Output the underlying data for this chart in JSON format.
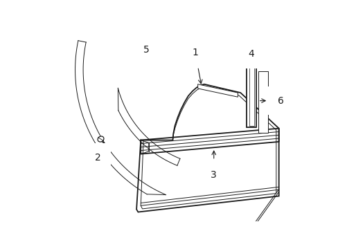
{
  "bg_color": "#ffffff",
  "line_color": "#1a1a1a",
  "lw_main": 1.3,
  "lw_thin": 0.7,
  "lw_hair": 0.5,
  "fig_width": 4.89,
  "fig_height": 3.6,
  "dpi": 100,
  "label_fontsize": 10
}
